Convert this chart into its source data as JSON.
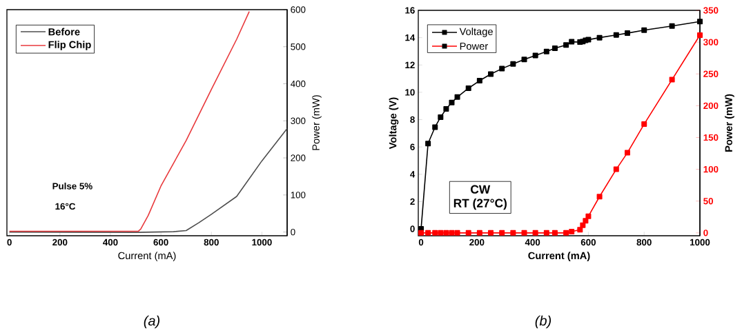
{
  "chart_data": [
    {
      "type": "line",
      "title": "(a)",
      "xlabel": "Current (mA)",
      "y2label": "Power (mW)",
      "xlim": [
        -10,
        1100
      ],
      "xticks": [
        0,
        200,
        400,
        600,
        800,
        1000
      ],
      "y2lim": [
        -10,
        600
      ],
      "y2ticks": [
        0,
        100,
        200,
        300,
        400,
        500,
        600
      ],
      "legend": "top left",
      "annotations": [
        "Pulse 5%",
        "16°C"
      ],
      "series": [
        {
          "name": "Before",
          "color": "#4d4d4d",
          "axis": "y2",
          "x": [
            0,
            500,
            650,
            700,
            750,
            800,
            900,
            1000,
            1100
          ],
          "values": [
            0,
            -1,
            1,
            4,
            25,
            48,
            96,
            192,
            279
          ]
        },
        {
          "name": "Flip Chip",
          "color": "#e8393c",
          "axis": "y2",
          "x": [
            0,
            510,
            520,
            550,
            600,
            700,
            800,
            900,
            950
          ],
          "values": [
            2,
            2,
            8,
            45,
            124,
            247,
            385,
            520,
            595
          ]
        }
      ]
    },
    {
      "type": "line",
      "title": "(b)",
      "xlabel": "Current (mA)",
      "ylabel": "Voltage (V)",
      "y2label": "Power (mW)",
      "xlim": [
        -10,
        1000
      ],
      "xticks": [
        0,
        200,
        400,
        600,
        800,
        1000
      ],
      "ylim": [
        -0.5,
        16
      ],
      "yticks": [
        0,
        2,
        4,
        6,
        8,
        10,
        12,
        14,
        16
      ],
      "y2lim": [
        -4.5,
        350
      ],
      "y2ticks": [
        0,
        50,
        100,
        150,
        200,
        250,
        300,
        350
      ],
      "legend": "top left",
      "marker": "square",
      "annotations": [
        "CW",
        "RT (27°C)"
      ],
      "series": [
        {
          "name": "Voltage",
          "color": "#000000",
          "x": [
            0,
            25,
            50,
            70,
            90,
            110,
            130,
            170,
            210,
            250,
            290,
            330,
            370,
            410,
            450,
            480,
            520,
            540,
            570,
            580,
            590,
            600,
            640,
            700,
            740,
            800,
            900,
            1000
          ],
          "values": [
            0,
            6.25,
            7.45,
            8.18,
            8.78,
            9.25,
            9.65,
            10.3,
            10.85,
            11.33,
            11.73,
            12.08,
            12.4,
            12.7,
            12.98,
            13.22,
            13.46,
            13.7,
            13.68,
            13.72,
            13.8,
            13.85,
            14.0,
            14.2,
            14.33,
            14.55,
            14.85,
            15.18
          ]
        },
        {
          "name": "Power",
          "color": "#ff0000",
          "axis": "y2",
          "x": [
            0,
            25,
            50,
            70,
            90,
            110,
            130,
            170,
            210,
            250,
            290,
            330,
            370,
            410,
            450,
            480,
            520,
            540,
            570,
            580,
            590,
            600,
            640,
            700,
            740,
            800,
            900,
            1000
          ],
          "values": [
            0,
            0,
            0,
            0,
            0,
            0,
            0,
            0,
            0,
            0,
            0,
            0,
            0,
            0,
            0,
            0,
            0,
            2,
            5,
            12,
            19,
            26,
            57,
            100,
            126,
            171,
            241,
            311
          ]
        }
      ]
    }
  ]
}
